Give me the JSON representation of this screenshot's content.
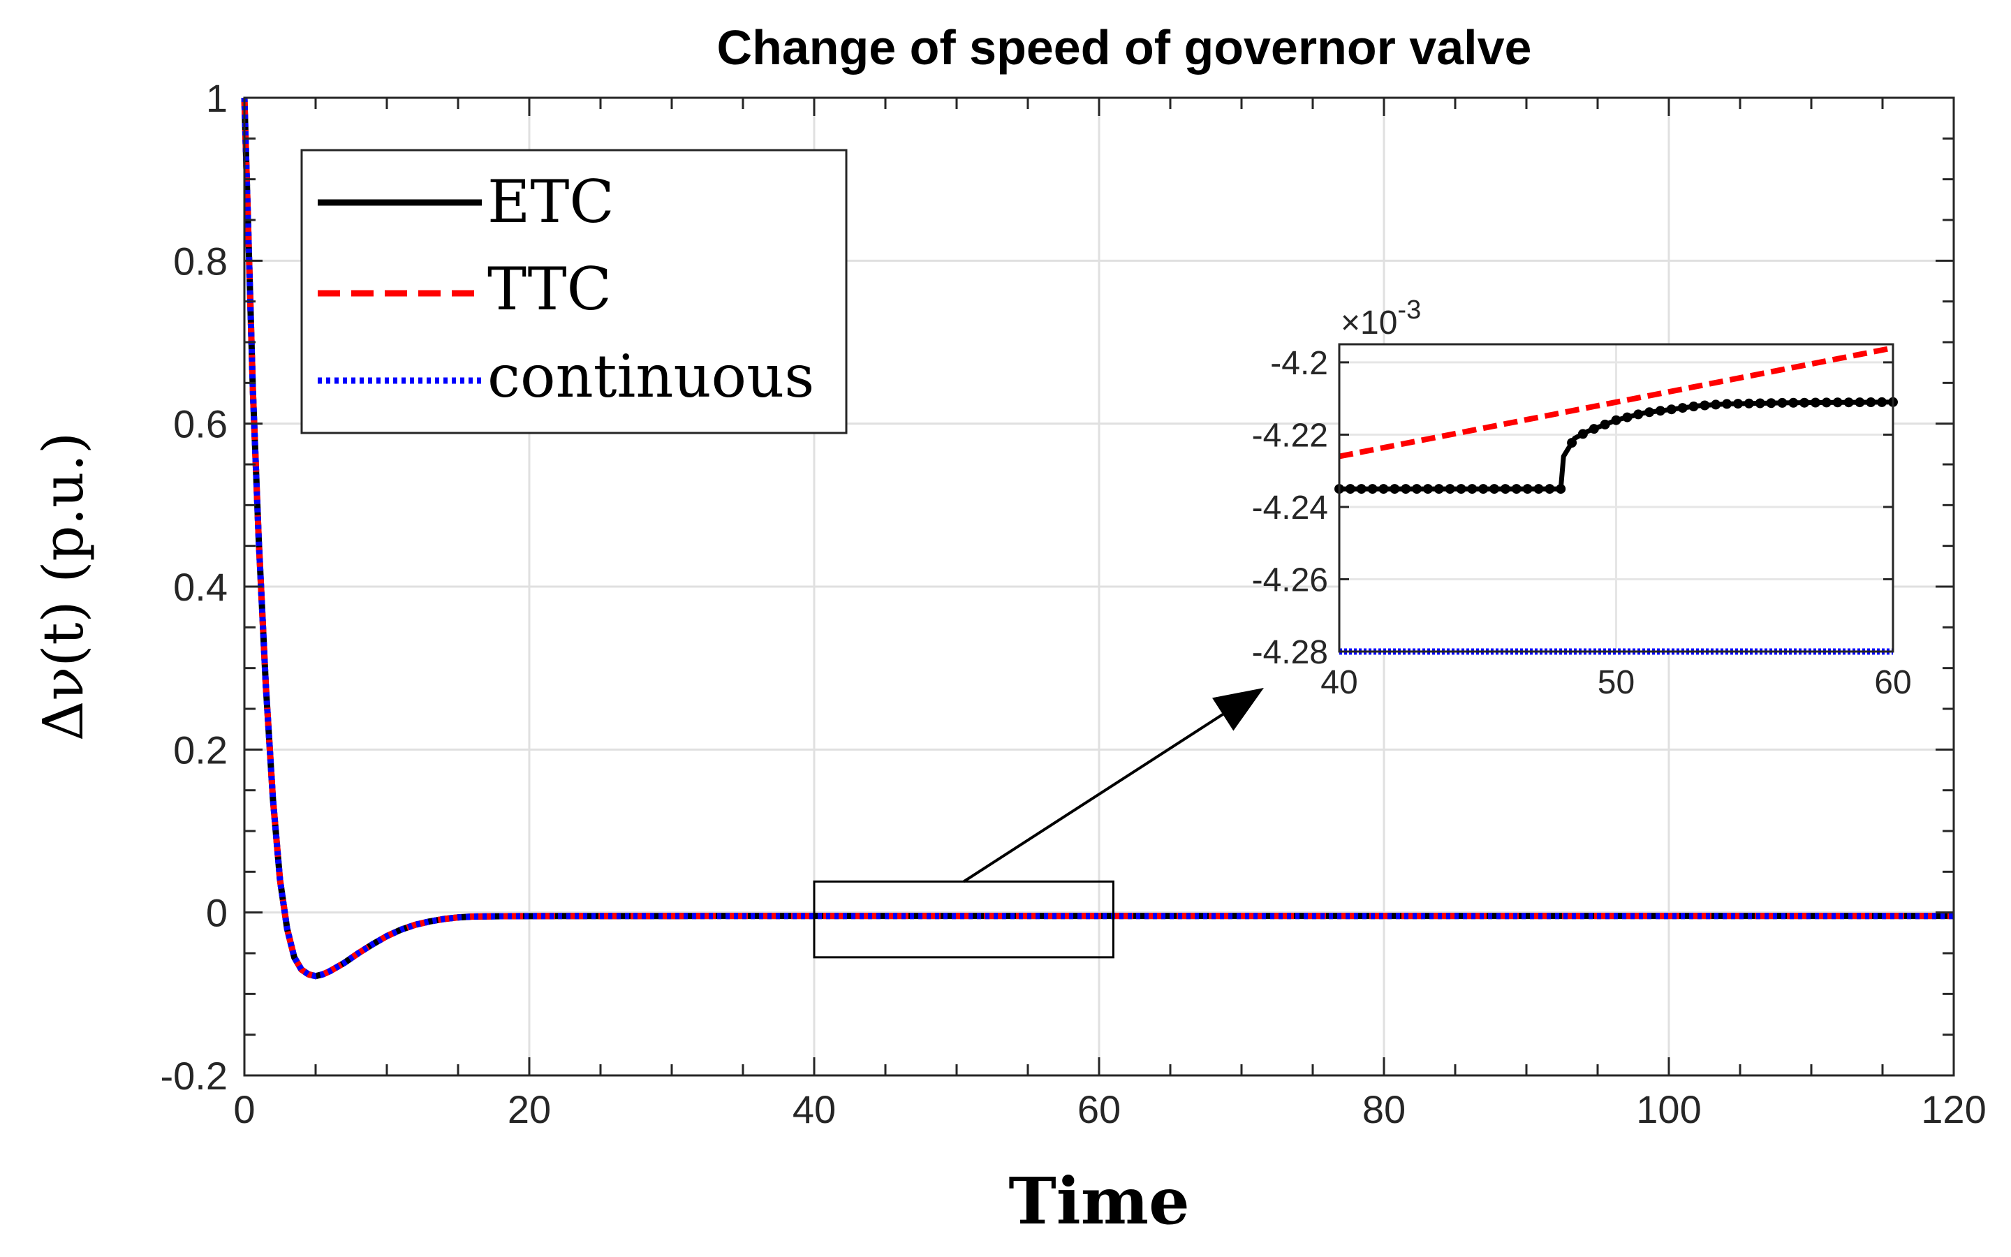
{
  "chart_data": {
    "type": "line",
    "title": "Change of speed of governor valve",
    "xlabel": "Time",
    "ylabel": "Δν(t) (p.u.)",
    "xlim": [
      0,
      120
    ],
    "ylim": [
      -0.2,
      1
    ],
    "grid": true,
    "legend_position": "top-left",
    "x_ticks": [
      "0",
      "20",
      "40",
      "60",
      "80",
      "100",
      "120"
    ],
    "y_ticks": [
      "-0.2",
      "0",
      "0.2",
      "0.4",
      "0.6",
      "0.8",
      "1"
    ],
    "series": [
      {
        "name": "ETC",
        "style": "solid",
        "color": "#000000",
        "x": [
          0,
          0.3,
          0.6,
          1,
          1.5,
          2,
          2.5,
          3,
          3.5,
          4,
          4.5,
          5,
          5.5,
          6,
          7,
          8,
          9,
          10,
          11,
          12,
          13,
          14,
          15,
          16,
          17,
          18,
          20,
          22,
          25,
          30,
          40,
          60,
          80,
          100,
          120
        ],
        "y": [
          1,
          0.82,
          0.64,
          0.46,
          0.28,
          0.14,
          0.04,
          -0.02,
          -0.055,
          -0.07,
          -0.076,
          -0.078,
          -0.076,
          -0.072,
          -0.062,
          -0.05,
          -0.039,
          -0.029,
          -0.021,
          -0.015,
          -0.011,
          -0.008,
          -0.006,
          -0.005,
          -0.0048,
          -0.0046,
          -0.0045,
          -0.0044,
          -0.0043,
          -0.0043,
          -0.0042,
          -0.0042,
          -0.0042,
          -0.0042,
          -0.0042
        ]
      },
      {
        "name": "TTC",
        "style": "dashed",
        "color": "#ff0000",
        "x": [
          0,
          0.3,
          0.6,
          1,
          1.5,
          2,
          2.5,
          3,
          3.5,
          4,
          4.5,
          5,
          5.5,
          6,
          7,
          8,
          9,
          10,
          11,
          12,
          13,
          14,
          15,
          16,
          17,
          18,
          20,
          22,
          25,
          30,
          40,
          60,
          80,
          100,
          120
        ],
        "y": [
          1,
          0.82,
          0.64,
          0.46,
          0.28,
          0.14,
          0.04,
          -0.02,
          -0.055,
          -0.07,
          -0.076,
          -0.078,
          -0.076,
          -0.072,
          -0.062,
          -0.05,
          -0.039,
          -0.029,
          -0.021,
          -0.015,
          -0.011,
          -0.008,
          -0.006,
          -0.005,
          -0.0048,
          -0.0046,
          -0.0045,
          -0.0044,
          -0.0043,
          -0.0043,
          -0.0042,
          -0.0042,
          -0.0042,
          -0.0042,
          -0.0042
        ]
      },
      {
        "name": "continuous",
        "style": "dotted",
        "color": "#0000ff",
        "x": [
          0,
          0.3,
          0.6,
          1,
          1.5,
          2,
          2.5,
          3,
          3.5,
          4,
          4.5,
          5,
          5.5,
          6,
          7,
          8,
          9,
          10,
          11,
          12,
          13,
          14,
          15,
          16,
          17,
          18,
          20,
          22,
          25,
          30,
          40,
          60,
          80,
          100,
          120
        ],
        "y": [
          1,
          0.82,
          0.64,
          0.46,
          0.28,
          0.14,
          0.04,
          -0.02,
          -0.055,
          -0.07,
          -0.076,
          -0.078,
          -0.076,
          -0.072,
          -0.062,
          -0.05,
          -0.039,
          -0.029,
          -0.021,
          -0.015,
          -0.011,
          -0.008,
          -0.006,
          -0.005,
          -0.0048,
          -0.0046,
          -0.0045,
          -0.0044,
          -0.0043,
          -0.0043,
          -0.0043,
          -0.0043,
          -0.0043,
          -0.0043,
          -0.0043
        ]
      }
    ],
    "zoom_box": {
      "x": [
        40,
        61
      ],
      "y": [
        -0.055,
        0.038
      ]
    },
    "inset": {
      "xlim": [
        40,
        60
      ],
      "ylim": [
        -4.28,
        -4.195
      ],
      "exponent_label": "×10",
      "exponent_power": "-3",
      "x_ticks": [
        "40",
        "50",
        "60"
      ],
      "y_ticks": [
        "-4.28",
        "-4.26",
        "-4.24",
        "-4.22",
        "-4.2"
      ],
      "series": [
        {
          "name": "ETC",
          "color": "#000000",
          "x": [
            40,
            48,
            48.1,
            48.5,
            49,
            50,
            51,
            52,
            53,
            54,
            56,
            58,
            60
          ],
          "y": [
            -4.235,
            -4.235,
            -4.226,
            -4.221,
            -4.219,
            -4.216,
            -4.214,
            -4.213,
            -4.212,
            -4.2115,
            -4.2112,
            -4.2111,
            -4.211
          ]
        },
        {
          "name": "TTC",
          "color": "#ff0000",
          "x": [
            40,
            60
          ],
          "y": [
            -4.226,
            -4.196
          ]
        },
        {
          "name": "continuous",
          "color": "#0000ff",
          "x": [
            40,
            60
          ],
          "y": [
            -4.28,
            -4.28
          ]
        }
      ]
    }
  }
}
